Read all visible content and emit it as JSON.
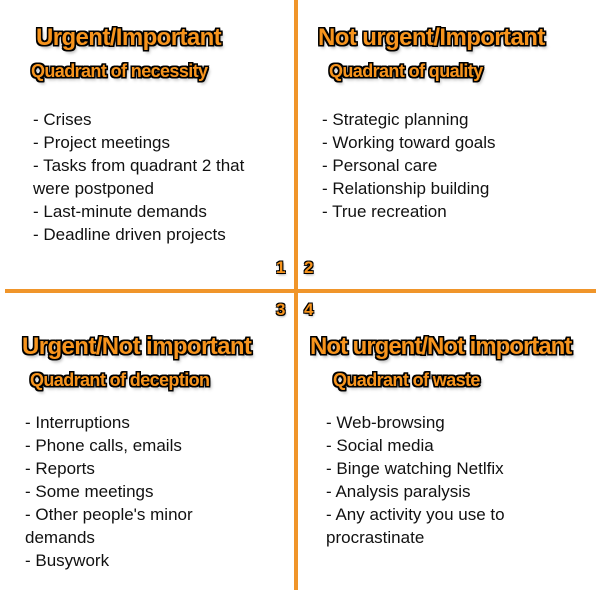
{
  "quadrants": [
    {
      "number": "1",
      "title": "Urgent/Important",
      "subtitle": "Quadrant of necessity",
      "items": [
        "- Crises",
        "- Project meetings",
        "- Tasks from quadrant 2 that were postponed",
        "- Last-minute demands",
        "- Deadline driven projects"
      ]
    },
    {
      "number": "2",
      "title": "Not urgent/Important",
      "subtitle": "Quadrant of quality",
      "items": [
        "- Strategic planning",
        "- Working toward goals",
        "- Personal care",
        "- Relationship building",
        "- True recreation"
      ]
    },
    {
      "number": "3",
      "title": "Urgent/Not important",
      "subtitle": "Quadrant of deception",
      "items": [
        "- Interruptions",
        "- Phone calls, emails",
        "- Reports",
        "- Some meetings",
        "- Other people's minor demands",
        "- Busywork"
      ]
    },
    {
      "number": "4",
      "title": "Not urgent/Not important",
      "subtitle": "Quadrant of waste",
      "items": [
        "- Web-browsing",
        "- Social media",
        "- Binge watching Netlfix",
        "- Analysis paralysis",
        "- Any activity you use to procrastinate"
      ]
    }
  ],
  "colors": {
    "accent": "#f7941d",
    "axis": "#f0952a",
    "outline": "#000000",
    "text": "#111111",
    "background": "#ffffff"
  }
}
